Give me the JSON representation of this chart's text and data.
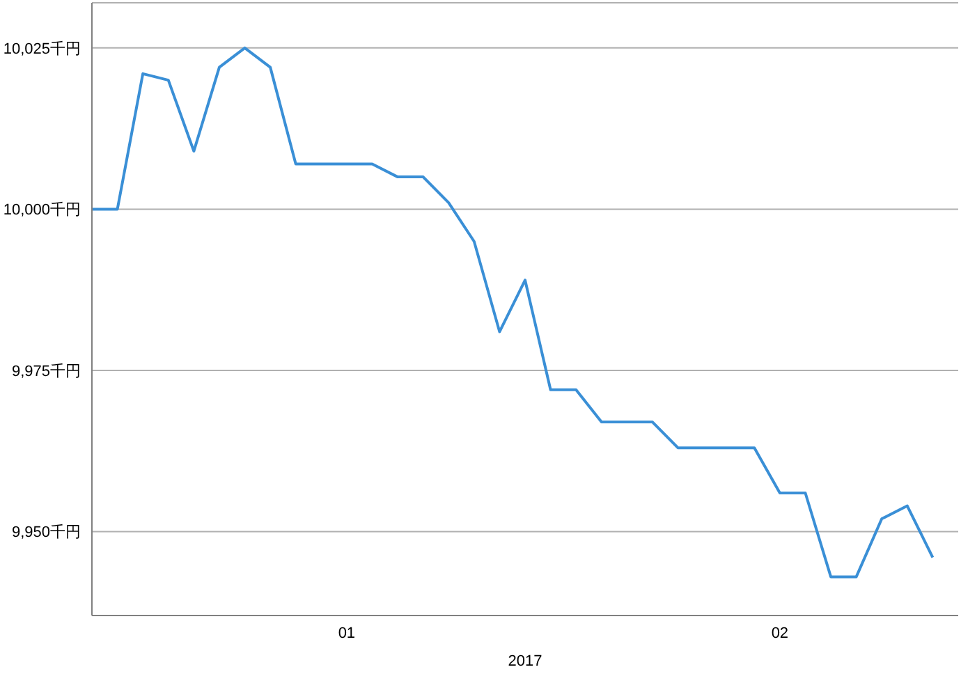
{
  "chart_data": {
    "type": "line",
    "xlabel": "2017",
    "categories": [
      null,
      null,
      null,
      null,
      null,
      null,
      null,
      null,
      null,
      null,
      "01",
      null,
      null,
      null,
      null,
      null,
      null,
      null,
      null,
      null,
      null,
      null,
      null,
      null,
      null,
      null,
      null,
      "02",
      null,
      null,
      null,
      null,
      null,
      null
    ],
    "series": [
      {
        "color": "#3a8fd6",
        "values": [
          10000,
          10000,
          10021,
          10020,
          10009,
          10022,
          10025,
          10022,
          10007,
          10007,
          10007,
          10007,
          10005,
          10005,
          10001,
          9995,
          9981,
          9989,
          9972,
          9972,
          9967,
          9967,
          9967,
          9963,
          9963,
          9963,
          9963,
          9956,
          9956,
          9943,
          9943,
          9952,
          9954,
          9946
        ]
      }
    ],
    "ylim": [
      9937,
      10032
    ],
    "yticks": [
      {
        "value": 9950,
        "label": "9,950千円"
      },
      {
        "value": 9975,
        "label": "9,975千円"
      },
      {
        "value": 10000,
        "label": "10,000千円"
      },
      {
        "value": 10025,
        "label": "10,025千円"
      }
    ],
    "grid": "y",
    "legend": false,
    "marker": "none",
    "line_style": "solid"
  }
}
